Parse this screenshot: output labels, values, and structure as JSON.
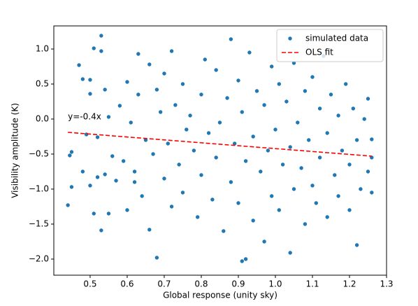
{
  "chart_data": {
    "type": "scatter",
    "x_label": "Global response (unity sky)",
    "y_label": "Visibility amplitude (K)",
    "xlim": [
      0.402,
      1.3
    ],
    "ylim": [
      -2.23,
      1.33
    ],
    "xticks": [
      0.5,
      0.6,
      0.7,
      0.8,
      0.9,
      {
        "value": 1,
        "label": "1.0"
      },
      1.1,
      1.2,
      1.3
    ],
    "yticks": [
      {
        "value": 1,
        "label": "1.0"
      },
      0.5,
      {
        "value": 0,
        "label": "0.0"
      },
      {
        "value": -0.5,
        "label": "−0.5"
      },
      {
        "value": -1,
        "label": "−1.0"
      },
      {
        "value": -1.5,
        "label": "−1.5"
      },
      {
        "value": -2,
        "label": "−2.0"
      }
    ],
    "legend": "upper right",
    "annotation": {
      "text": "y=-0.4x",
      "color": "#ff0000"
    },
    "series": [
      {
        "name": "simulated data",
        "color": "#1f77b4",
        "style": "scatter",
        "x": [
          0.44,
          0.45,
          0.445,
          0.45,
          0.47,
          0.48,
          0.48,
          0.49,
          0.5,
          0.5,
          0.5,
          0.51,
          0.51,
          0.52,
          0.52,
          0.53,
          0.53,
          0.53,
          0.54,
          0.54,
          0.55,
          0.55,
          0.56,
          0.57,
          0.58,
          0.59,
          0.6,
          0.6,
          0.61,
          0.62,
          0.62,
          0.63,
          0.63,
          0.64,
          0.65,
          0.66,
          0.66,
          0.67,
          0.68,
          0.68,
          0.69,
          0.7,
          0.7,
          0.71,
          0.72,
          0.72,
          0.73,
          0.74,
          0.75,
          0.75,
          0.76,
          0.77,
          0.78,
          0.79,
          0.8,
          0.8,
          0.81,
          0.82,
          0.83,
          0.84,
          0.84,
          0.85,
          0.86,
          0.87,
          0.88,
          0.88,
          0.89,
          0.9,
          0.9,
          0.91,
          0.91,
          0.92,
          0.92,
          0.93,
          0.94,
          0.94,
          0.95,
          0.96,
          0.97,
          0.97,
          0.98,
          0.99,
          0.99,
          1.0,
          1.01,
          1.01,
          1.02,
          1.03,
          1.04,
          1.04,
          1.05,
          1.05,
          1.06,
          1.07,
          1.08,
          1.08,
          1.09,
          1.1,
          1.1,
          1.11,
          1.12,
          1.12,
          1.13,
          1.14,
          1.14,
          1.15,
          1.16,
          1.17,
          1.17,
          1.18,
          1.19,
          1.2,
          1.2,
          1.21,
          1.22,
          1.22,
          1.23,
          1.24,
          1.25,
          1.25,
          1.26,
          1.26,
          1.26
        ],
        "values": [
          -1.23,
          -0.47,
          -0.52,
          -0.97,
          0.77,
          0.57,
          -0.75,
          -0.22,
          0.56,
          0.36,
          -0.95,
          1.01,
          -1.35,
          -0.83,
          -0.26,
          1.19,
          0.97,
          -1.59,
          0.42,
          -0.79,
          -1.35,
          0.03,
          -0.53,
          -0.88,
          0.19,
          -0.6,
          0.53,
          -1.3,
          -0.05,
          -0.9,
          -0.75,
          0.93,
          0.35,
          -1.1,
          -0.3,
          0.78,
          -1.58,
          -0.5,
          0.42,
          -1.98,
          0.1,
          0.65,
          -0.85,
          -0.35,
          0.97,
          -1.25,
          0.2,
          -0.65,
          0.5,
          -1.05,
          -0.15,
          0.05,
          -0.45,
          -1.4,
          0.35,
          -0.8,
          0.85,
          -0.2,
          -1.15,
          0.7,
          -0.55,
          -0.05,
          -1.6,
          0.3,
          1.14,
          -0.9,
          -0.35,
          0.55,
          -1.2,
          -2.03,
          0.1,
          -2.0,
          -0.6,
          0.95,
          -1.45,
          -0.25,
          0.4,
          -0.75,
          -1.75,
          0.2,
          -0.45,
          0.75,
          -1.1,
          -0.15,
          0.5,
          -1.3,
          -0.65,
          0.25,
          -1.91,
          -0.4,
          0.8,
          -1.0,
          -0.05,
          -0.7,
          0.4,
          -1.5,
          -0.3,
          0.6,
          -0.95,
          -1.2,
          0.15,
          -0.55,
          0.9,
          -1.4,
          -0.2,
          0.35,
          -0.8,
          -1.1,
          0.05,
          -0.45,
          0.5,
          -1.3,
          -0.65,
          0.15,
          -1.8,
          -0.3,
          -1.0,
          0.0,
          0.29,
          -0.75,
          -0.29,
          -1.05,
          -0.55
        ]
      },
      {
        "name": "OLS fit",
        "color": "#ff0000",
        "style": "dashed-line",
        "x": [
          0.44,
          1.26
        ],
        "values": [
          -0.19,
          -0.53
        ]
      }
    ]
  }
}
